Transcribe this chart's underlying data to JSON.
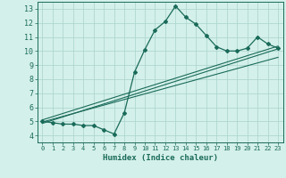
{
  "xlabel": "Humidex (Indice chaleur)",
  "ylabel": "",
  "bg_color": "#d4f0ea",
  "grid_color": "#aed8d0",
  "line_color": "#1a6b5a",
  "xlim": [
    -0.5,
    23.5
  ],
  "ylim": [
    3.5,
    13.5
  ],
  "xticks": [
    0,
    1,
    2,
    3,
    4,
    5,
    6,
    7,
    8,
    9,
    10,
    11,
    12,
    13,
    14,
    15,
    16,
    17,
    18,
    19,
    20,
    21,
    22,
    23
  ],
  "yticks": [
    4,
    5,
    6,
    7,
    8,
    9,
    10,
    11,
    12,
    13
  ],
  "main_x": [
    0,
    1,
    2,
    3,
    4,
    5,
    6,
    7,
    8,
    9,
    10,
    11,
    12,
    13,
    14,
    15,
    16,
    17,
    18,
    19,
    20,
    21,
    22,
    23
  ],
  "main_y": [
    5.0,
    4.9,
    4.8,
    4.8,
    4.7,
    4.7,
    4.4,
    4.1,
    5.6,
    8.5,
    10.1,
    11.5,
    12.1,
    13.2,
    12.4,
    11.9,
    11.1,
    10.3,
    10.0,
    10.0,
    10.2,
    11.0,
    10.5,
    10.2
  ],
  "line1_x": [
    0,
    23
  ],
  "line1_y": [
    4.85,
    10.15
  ],
  "line2_x": [
    0,
    23
  ],
  "line2_y": [
    4.95,
    9.55
  ],
  "line3_x": [
    0,
    23
  ],
  "line3_y": [
    5.1,
    10.35
  ]
}
